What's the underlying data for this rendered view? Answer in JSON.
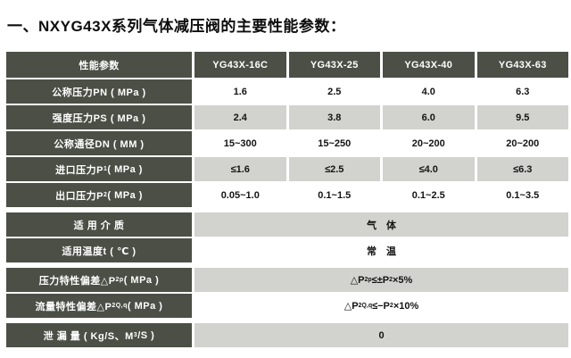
{
  "title": "一、NXYG43X系列气体减压阀的主要性能参数：",
  "colors": {
    "header_bg": "#4b4f46",
    "shaded_row_bg": "#d2d2ce",
    "plain_row_bg": "#ffffff",
    "header_text": "#ffffff",
    "body_text": "#141414"
  },
  "table": {
    "header": [
      "性能参数",
      "YG43X-16C",
      "YG43X-25",
      "YG43X-40",
      "YG43X-63"
    ],
    "rows": [
      {
        "label": [
          {
            "t": "公称压力PN ( MPa )"
          }
        ],
        "cells": [
          "1.6",
          "2.5",
          "4.0",
          "6.3"
        ],
        "shaded": false,
        "gap_after": false
      },
      {
        "label": [
          {
            "t": "强度压力PS ( MPa )"
          }
        ],
        "cells": [
          "2.4",
          "3.8",
          "6.0",
          "9.5"
        ],
        "shaded": true,
        "gap_after": false
      },
      {
        "label": [
          {
            "t": "公称通径DN ( MM )"
          }
        ],
        "cells": [
          "15~300",
          "15~250",
          "20~200",
          "20~200"
        ],
        "shaded": false,
        "gap_after": false
      },
      {
        "label": [
          {
            "t": "进口压力P"
          },
          {
            "sub": "1"
          },
          {
            "t": " ( MPa )"
          }
        ],
        "cells": [
          "≤1.6",
          "≤2.5",
          "≤4.0",
          "≤6.3"
        ],
        "shaded": true,
        "gap_after": false
      },
      {
        "label": [
          {
            "t": "出口压力P"
          },
          {
            "sub": "2"
          },
          {
            "t": " ( MPa )"
          }
        ],
        "cells": [
          "0.05~1.0",
          "0.1~1.5",
          "0.1~2.5",
          "0.1~3.5"
        ],
        "shaded": false,
        "gap_after": true
      },
      {
        "label": [
          {
            "t": "适 用 介 质"
          }
        ],
        "span": [
          {
            "t": "气　体"
          }
        ],
        "shaded": true,
        "gap_after": false
      },
      {
        "label": [
          {
            "t": "适用温度t ( ℃ )"
          }
        ],
        "span": [
          {
            "t": "常　温"
          }
        ],
        "shaded": false,
        "gap_after": true
      },
      {
        "label": [
          {
            "t": "压力特性偏差△P"
          },
          {
            "sub": "2p"
          },
          {
            "t": " ( MPa )"
          }
        ],
        "span": [
          {
            "t": "△P"
          },
          {
            "sub": "2p"
          },
          {
            "t": "≤±P"
          },
          {
            "sub": "2"
          },
          {
            "t": "×5%"
          }
        ],
        "shaded": true,
        "gap_after": false
      },
      {
        "label": [
          {
            "t": "流量特性偏差△P"
          },
          {
            "sub": "2Q,q"
          },
          {
            "t": " ( MPa )"
          }
        ],
        "span": [
          {
            "t": "△P"
          },
          {
            "sub": "2Q,q"
          },
          {
            "t": "≤−P"
          },
          {
            "sub": "2"
          },
          {
            "t": "×10%"
          }
        ],
        "shaded": false,
        "gap_after": true
      },
      {
        "label": [
          {
            "t": "泄 漏 量 ( Kg/S、M"
          },
          {
            "sup": "3"
          },
          {
            "t": "/S )"
          }
        ],
        "span": [
          {
            "t": "0"
          }
        ],
        "shaded": true,
        "gap_after": false
      }
    ]
  }
}
